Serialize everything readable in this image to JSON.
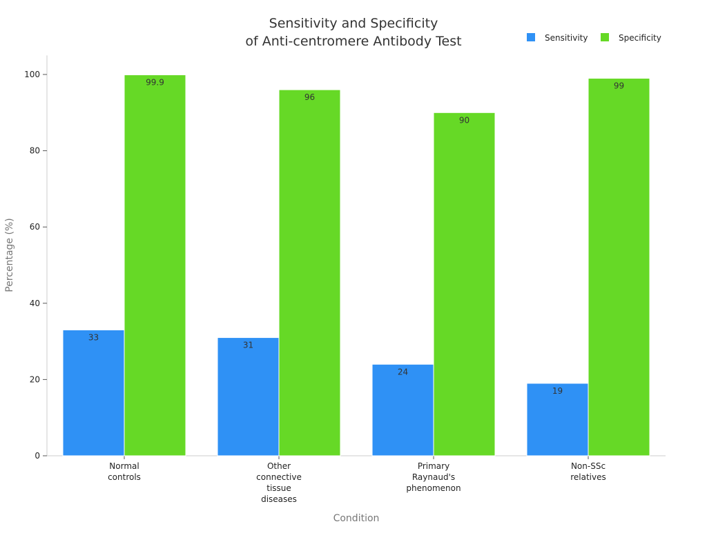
{
  "chart_data": {
    "type": "bar",
    "title_lines": [
      "Sensitivity and Specificity",
      "of Anti-centromere Antibody Test"
    ],
    "xlabel": "Condition",
    "ylabel": "Percentage (%)",
    "ylim": [
      0,
      105
    ],
    "yticks": [
      "0",
      "20",
      "40",
      "60",
      "80",
      "100"
    ],
    "grid": false,
    "legend_position": "top-right",
    "categories": [
      [
        "Normal",
        "controls"
      ],
      [
        "Other",
        "connective",
        "tissue",
        "diseases"
      ],
      [
        "Primary",
        "Raynaud's",
        "phenomenon"
      ],
      [
        "Non-SSc",
        "relatives"
      ]
    ],
    "series": [
      {
        "name": "Sensitivity",
        "color": "#2f91f5",
        "values": [
          33,
          31,
          24,
          19
        ],
        "labels": [
          "33",
          "31",
          "24",
          "19"
        ]
      },
      {
        "name": "Specificity",
        "color": "#66d926",
        "values": [
          99.9,
          96,
          90,
          99
        ],
        "labels": [
          "99.9",
          "96",
          "90",
          "99"
        ]
      }
    ]
  }
}
